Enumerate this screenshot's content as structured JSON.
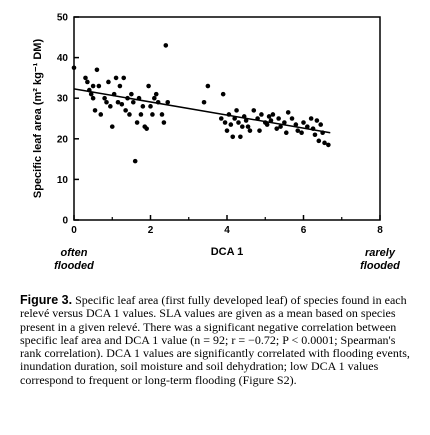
{
  "chart_data": {
    "type": "scatter",
    "xlabel": "DCA 1",
    "ylabel": "Specific leaf area (m² kg⁻¹ DM)",
    "xlim": [
      0,
      8
    ],
    "ylim": [
      0,
      50
    ],
    "x_ticks": [
      "0",
      "2",
      "4",
      "6",
      "8"
    ],
    "y_ticks": [
      "0",
      "10",
      "20",
      "30",
      "40",
      "50"
    ],
    "annotations": [
      {
        "lines": [
          "often",
          "flooded"
        ],
        "position": "bottom-left"
      },
      {
        "lines": [
          "rarely",
          "flooded"
        ],
        "position": "bottom-right"
      }
    ],
    "trend_line": {
      "x": [
        0,
        6.7
      ],
      "y": [
        32.3,
        21.5
      ]
    },
    "points": [
      [
        0.0,
        37.5
      ],
      [
        0.3,
        35
      ],
      [
        0.35,
        34
      ],
      [
        0.4,
        32
      ],
      [
        0.45,
        31
      ],
      [
        0.5,
        30
      ],
      [
        0.5,
        33
      ],
      [
        0.55,
        27
      ],
      [
        0.6,
        37
      ],
      [
        0.65,
        33
      ],
      [
        0.7,
        26
      ],
      [
        0.8,
        30
      ],
      [
        0.85,
        29
      ],
      [
        0.9,
        34
      ],
      [
        0.95,
        28
      ],
      [
        1.0,
        23
      ],
      [
        1.05,
        31
      ],
      [
        1.1,
        35
      ],
      [
        1.15,
        29
      ],
      [
        1.2,
        33
      ],
      [
        1.25,
        28.5
      ],
      [
        1.3,
        35
      ],
      [
        1.35,
        27
      ],
      [
        1.4,
        30
      ],
      [
        1.45,
        26
      ],
      [
        1.5,
        31
      ],
      [
        1.55,
        29
      ],
      [
        1.6,
        14.5
      ],
      [
        1.65,
        24
      ],
      [
        1.7,
        30
      ],
      [
        1.75,
        26
      ],
      [
        1.8,
        28
      ],
      [
        1.85,
        23
      ],
      [
        1.9,
        22.5
      ],
      [
        1.95,
        33
      ],
      [
        2.0,
        28
      ],
      [
        2.05,
        26
      ],
      [
        2.1,
        30
      ],
      [
        2.15,
        31
      ],
      [
        2.2,
        29
      ],
      [
        2.3,
        26
      ],
      [
        2.35,
        24
      ],
      [
        2.4,
        43
      ],
      [
        2.45,
        29
      ],
      [
        3.4,
        29
      ],
      [
        3.5,
        33
      ],
      [
        3.85,
        25
      ],
      [
        3.9,
        31
      ],
      [
        3.95,
        24
      ],
      [
        4.0,
        22
      ],
      [
        4.05,
        26
      ],
      [
        4.1,
        23.5
      ],
      [
        4.15,
        20.5
      ],
      [
        4.2,
        25
      ],
      [
        4.25,
        27
      ],
      [
        4.3,
        24
      ],
      [
        4.35,
        20.5
      ],
      [
        4.4,
        23
      ],
      [
        4.45,
        25.5
      ],
      [
        4.5,
        24.5
      ],
      [
        4.55,
        23
      ],
      [
        4.6,
        22
      ],
      [
        4.7,
        27
      ],
      [
        4.8,
        25
      ],
      [
        4.85,
        22
      ],
      [
        4.9,
        26
      ],
      [
        5.0,
        24
      ],
      [
        5.05,
        23.5
      ],
      [
        5.1,
        25.5
      ],
      [
        5.15,
        24.5
      ],
      [
        5.2,
        26
      ],
      [
        5.3,
        22.5
      ],
      [
        5.35,
        25
      ],
      [
        5.4,
        23
      ],
      [
        5.5,
        24
      ],
      [
        5.55,
        21.5
      ],
      [
        5.6,
        26.5
      ],
      [
        5.7,
        25
      ],
      [
        5.8,
        23.5
      ],
      [
        5.85,
        22
      ],
      [
        5.95,
        21.5
      ],
      [
        6.0,
        24
      ],
      [
        6.1,
        23
      ],
      [
        6.2,
        25
      ],
      [
        6.25,
        22.5
      ],
      [
        6.3,
        21
      ],
      [
        6.35,
        24.5
      ],
      [
        6.4,
        19.5
      ],
      [
        6.45,
        23.5
      ],
      [
        6.5,
        21.5
      ],
      [
        6.55,
        19
      ],
      [
        6.65,
        18.5
      ]
    ]
  },
  "caption": {
    "label": "Figure 3.",
    "text": " Specific leaf area (first fully developed leaf) of species found in each relevé versus DCA 1 values. SLA values are given as a mean based on species present in a given relevé. There was a significant negative correlation between specific leaf area and DCA 1 value (n = 92; r = −0.72; P < 0.0001; Spearman's rank correlation). DCA 1 values are significantly correlated with flooding events, inundation duration, soil moisture and soil dehydration; low DCA 1 values correspond to frequent or long-term flooding (Figure S2)."
  }
}
